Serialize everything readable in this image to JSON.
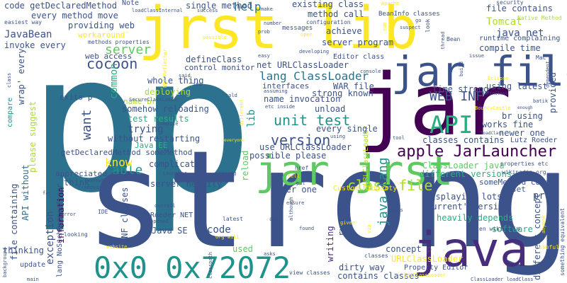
{
  "palette": {
    "navy": "#3b528b",
    "indigo": "#472d7b",
    "purple": "#440154",
    "teal": "#21918c",
    "blue": "#2c728e",
    "green": "#5ec962",
    "lime": "#addc30",
    "yellow": "#fde725",
    "sea": "#28ae80"
  },
  "words": {
    "p": "p",
    "strong": "strong",
    "jar": "jar",
    "jrst_lib": "jrst lib",
    "jar_file": "jar file",
    "jar_jrst": "jar jrst",
    "java": "java",
    "hex": "0x0 0x72072",
    "apple_jarlauncher": "apple JarLauncher",
    "api": "API",
    "web_inf": "WEB INF",
    "cocoon": "cocoon",
    "version": "version",
    "unit_test": "unit test",
    "java_lang": "java lang",
    "class_file": "class file",
    "lang_classloader": "lang ClassLoader",
    "server": "server",
    "able": "able",
    "want": "want",
    "know": "know",
    "lib": "lib",
    "help": "help",
    "tomcat": "Tomcat",
    "java_net": "java net",
    "javabean": "JavaBean",
    "every_method": "every method",
    "code_getdeclaredmethod": "code getDeclaredMethod",
    "existing_class": "existing class",
    "file_contains": "file contains",
    "method_call": "method call",
    "achieve": "achieve",
    "single_method": "single method",
    "server_program": "server program",
    "compile_time": "compile time",
    "runtime_complaining": "runtime complaining",
    "workaround": "workaround`",
    "invoke_every": "invoke every",
    "providing_web": "providing web",
    "move": "move",
    "note": "Note",
    "web_access": "web access",
    "common": "common",
    "defineclass": "defineClass",
    "control_monitor": "control monitor",
    "net_urlclassloader": "net URLClassLoader",
    "editor_class": "Editor class",
    "whole_thing": "whole thing",
    "deploying": "deploying",
    "interfaces": "interfaces",
    "war_file": "WAR file",
    "strong_known": "strong known",
    "time_strong": "time strong",
    "using_latest": "using latest",
    "name_invocation": "name invocation",
    "unload": "unload",
    "somehow_reloading": "somehow reloading",
    "test_results": "test results",
    "trying": "trying",
    "every_single": "every single",
    "works_fine": "works fine",
    "br_using": "br using",
    "newer_one": "newer one",
    "classes_contains": "classes contains",
    "without_restarting": "without restarting",
    "java_ee": "Java EE",
    "getdeclaredmethod_somemethod": "getDeclaredMethod someMethod",
    "complicated": "complicated",
    "use_urlclassloader": "use URLClassLoader",
    "possible_please": "possible please",
    "reload": "reload",
    "classloader_java": "ClassLoader java",
    "different_versions": "different versions",
    "somemethod_code": "someMethod code",
    "set": "set",
    "displaying_lots": "displaying lots",
    "current_version": "current' version",
    "heavily_depends": "heavily depends",
    "software": "software",
    "different_concept": "different concept",
    "pre": "pre",
    "server_heavily": "server heavily",
    "older_one": "older one",
    "think": "think",
    "appreciated_p": "appreciated p",
    "custom_property": "Custom Property",
    "run_unit": "run unit",
    "inf_classes": "INF classes",
    "java_se": "Java SE",
    "code": "code",
    "used": "used",
    "writing": "writing",
    "dirty_way": "dirty way",
    "concept_p": "concept p",
    "urlclassloader": "URLClassLoader",
    "contains_classes": "contains classes",
    "exception": "exception",
    "information": "information",
    "lang_nosuchmethoderror": "lang NoSuchMethodError",
    "file_containing": "file containing",
    "thinking": "thinking",
    "please_suggest": "please suggest",
    "wrap_every": "wrap' every",
    "compare": "compare",
    "api_without": "API without",
    "exits_p": "exits p",
    "name_br": "name br",
    "property_editor": "Property Editor",
    "update": "update",
    "provided": "provided",
    "roeder_net": "Roeder NET",
    "en_wikipedia": "en wikipedia",
    "lutz_roeder": "Lutz Roeder",
    "properties_etc": "properties etc",
    "wikipedia_org": "wikipedia org",
    "methods_properties": "methods properties",
    "configuration": "configuration",
    "messages": "messages",
    "beaninfo_classes": "BeanInfo classes",
    "native_method": "Native Method",
    "security": "security",
    "classloaderinternal": "loadClassInternal",
    "success": "success",
    "make": "make",
    "apache": "Apache",
    "easiest_way": "easiest way",
    "number": "number",
    "prob": "prob",
    "suspect": "suspect",
    "go": "go",
    "look": "look",
    "bean": "Bean",
    "thread": "thread",
    "open": "open",
    "possible": "possible",
    "developing": "developing",
    "easy": "easy",
    "issue": "issue",
    "mac": "Mac",
    "net_reflector": "NET Reflector",
    "said": "said",
    "see": "see",
    "console": "console",
    "eclipse": "Eclipse",
    "build": "build",
    "securityclassloader": "SecureClassLoader",
    "assuming": "assuming",
    "told": "told",
    "etc_inside": "etc inside",
    "different": "different",
    "bouncycastle": "BouncyCastle",
    "enough": "enough",
    "compile": "compile",
    "tool": "tool",
    "everyone": "everyone",
    "using": "using",
    "dependent": "dependent",
    "launcher": "Launcher",
    "fixing": "fixing",
    "href": "href",
    "tell": "tell",
    "put": "put",
    "somewhere": "somewhere",
    "framework": "framework",
    "far": "far",
    "ide": "IDE",
    "overall": "overall",
    "opened": "opened",
    "ensure": "ensure",
    "looking": "looking",
    "latest": "latest",
    "app": "app",
    "org_wiki": "org wiki",
    "website": "website",
    "classpath": "classpath",
    "asks": "asks",
    "found": "found",
    "classes": "classes",
    "view_classes": "view classes",
    "something_equivalent": "something equivalent",
    "useful": "useful",
    "anyone": "anyone",
    "says": "says",
    "given": "given",
    "appclassloader": "AppClassLoader",
    "classloader_loadclass": "ClassLoader loadClass",
    "main": "main",
    "background": "background",
    "error": "error",
    "although": "although",
    "batik": "batik",
    "sun": "sun",
    "class": "class",
    "cobol": "definClass",
    "loadclass": "loadClass",
    "via": "via"
  }
}
